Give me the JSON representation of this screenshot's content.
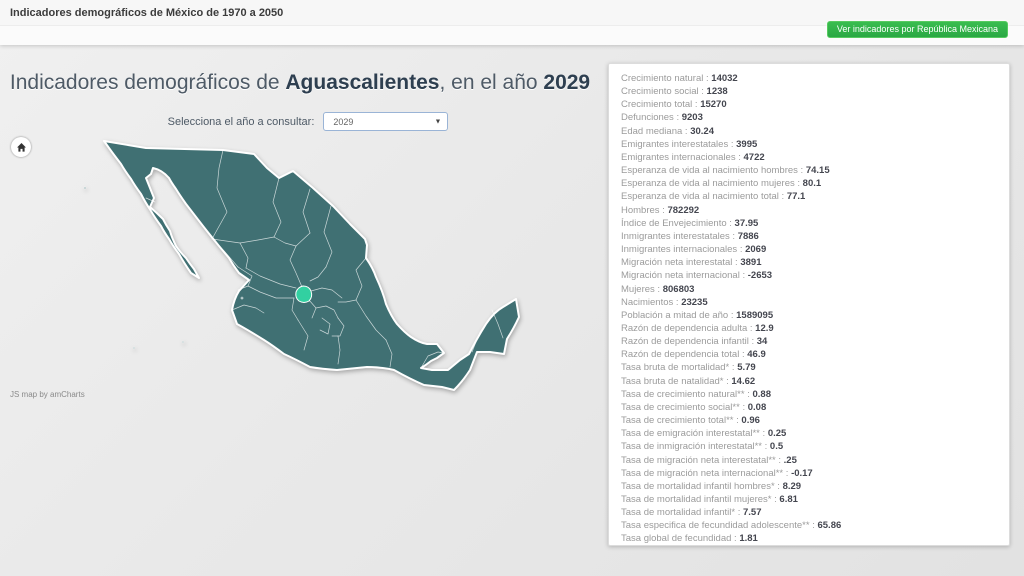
{
  "header": {
    "app_title": "Indicadores demográficos de México de 1970 a 2050",
    "button_label": "Ver indicadores por República Mexicana"
  },
  "main": {
    "title_prefix": "Indicadores demográficos de ",
    "title_state": "Aguascalientes",
    "title_middle": ", en el año ",
    "title_year": "2029",
    "selector_label": "Selecciona el año a consultar:",
    "selector_value": "2029",
    "map_attribution": "JS map by amCharts"
  },
  "map": {
    "highlighted_state": "Aguascalientes",
    "base_color": "#407073",
    "highlight_color": "#32d0a1",
    "border_color": "rgba(255,255,255,0.72)"
  },
  "indicators": [
    {
      "label": "Crecimiento natural",
      "value": "14032"
    },
    {
      "label": "Crecimiento social",
      "value": "1238"
    },
    {
      "label": "Crecimiento total",
      "value": "15270"
    },
    {
      "label": "Defunciones",
      "value": "9203"
    },
    {
      "label": "Edad mediana",
      "value": "30.24"
    },
    {
      "label": "Emigrantes interestatales",
      "value": "3995"
    },
    {
      "label": "Emigrantes internacionales",
      "value": "4722"
    },
    {
      "label": "Esperanza de vida al nacimiento hombres",
      "value": "74.15"
    },
    {
      "label": "Esperanza de vida al nacimiento mujeres",
      "value": "80.1"
    },
    {
      "label": "Esperanza de vida al nacimiento total",
      "value": "77.1"
    },
    {
      "label": "Hombres",
      "value": "782292"
    },
    {
      "label": "Índice de Envejecimiento",
      "value": "37.95"
    },
    {
      "label": "Inmigrantes interestatales",
      "value": "7886"
    },
    {
      "label": "Inmigrantes internacionales",
      "value": "2069"
    },
    {
      "label": "Migración neta interestatal",
      "value": "3891"
    },
    {
      "label": "Migración neta internacional",
      "value": "-2653"
    },
    {
      "label": "Mujeres",
      "value": "806803"
    },
    {
      "label": "Nacimientos",
      "value": "23235"
    },
    {
      "label": "Población a mitad de año",
      "value": "1589095"
    },
    {
      "label": "Razón de dependencia adulta",
      "value": "12.9"
    },
    {
      "label": "Razón de dependencia infantil",
      "value": "34"
    },
    {
      "label": "Razón de dependencia total",
      "value": "46.9"
    },
    {
      "label": "Tasa bruta de mortalidad*",
      "value": "5.79"
    },
    {
      "label": "Tasa bruta de natalidad*",
      "value": "14.62"
    },
    {
      "label": "Tasa de crecimiento natural**",
      "value": "0.88"
    },
    {
      "label": "Tasa de crecimiento social**",
      "value": "0.08"
    },
    {
      "label": "Tasa de crecimiento total**",
      "value": "0.96"
    },
    {
      "label": "Tasa de emigración interestatal**",
      "value": "0.25"
    },
    {
      "label": "Tasa de inmigración interestatal**",
      "value": "0.5"
    },
    {
      "label": "Tasa de migración neta interestatal**",
      "value": ".25"
    },
    {
      "label": "Tasa de migración neta internacional**",
      "value": "-0.17"
    },
    {
      "label": "Tasa de mortalidad infantil hombres*",
      "value": "8.29"
    },
    {
      "label": "Tasa de mortalidad infantil mujeres*",
      "value": "6.81"
    },
    {
      "label": "Tasa de mortalidad infantil*",
      "value": "7.57"
    },
    {
      "label": "Tasa especifica de fecundidad adolescente**",
      "value": "65.86"
    },
    {
      "label": "Tasa global de fecundidad",
      "value": "1.81"
    }
  ]
}
